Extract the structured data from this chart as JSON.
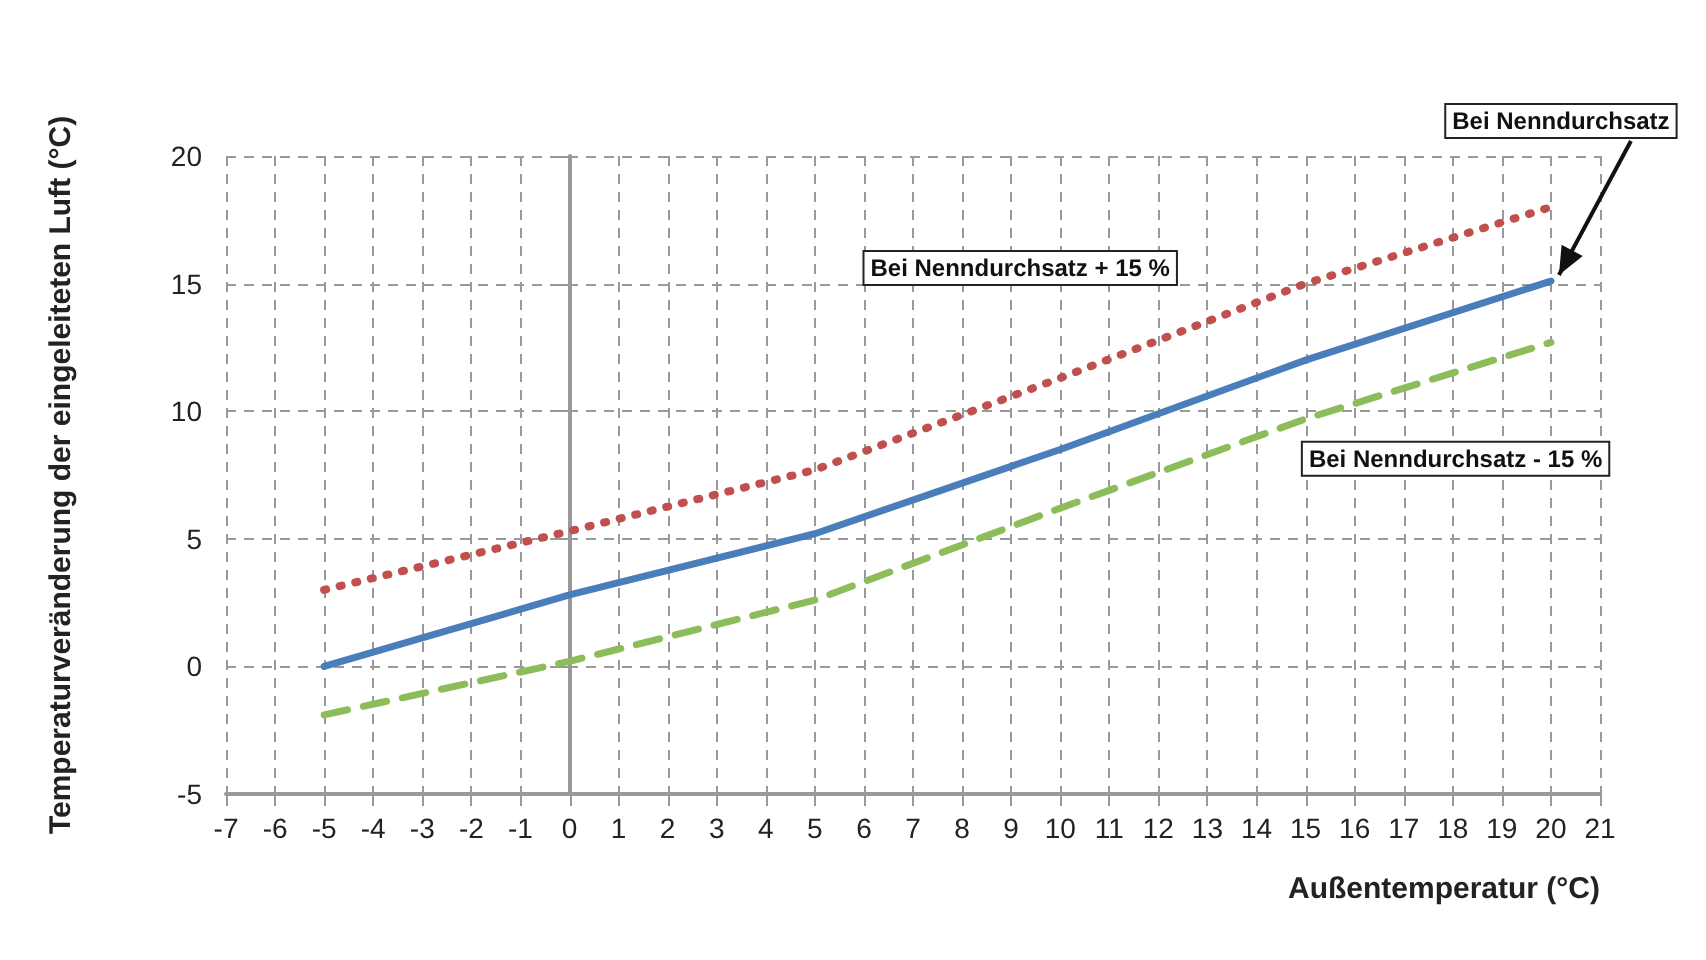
{
  "chart_data": {
    "type": "line",
    "xlabel": "Außentemperatur (°C)",
    "ylabel": "Temperaturveränderung der eingeleiteten Luft (°C)",
    "x": [
      -5,
      0,
      5,
      10,
      15,
      20
    ],
    "series": [
      {
        "name": "Bei Nenndurchsatz + 15 %",
        "color": "#c0504d",
        "line_style": "dotted",
        "values": [
          3.0,
          5.3,
          7.7,
          11.3,
          15.0,
          18.0
        ]
      },
      {
        "name": "Bei Nenndurchsatz",
        "color": "#4a7ebb",
        "line_style": "solid",
        "values": [
          0.0,
          2.8,
          5.2,
          8.5,
          12.0,
          15.1
        ]
      },
      {
        "name": "Bei Nenndurchsatz - 15 %",
        "color": "#8cbd5a",
        "line_style": "dashed",
        "values": [
          -1.9,
          0.2,
          2.6,
          6.2,
          9.7,
          12.7
        ]
      }
    ],
    "xlim": [
      -7,
      21
    ],
    "xticks": [
      -7,
      -6,
      -5,
      -4,
      -3,
      -2,
      -1,
      0,
      1,
      2,
      3,
      4,
      5,
      6,
      7,
      8,
      9,
      10,
      11,
      12,
      13,
      14,
      15,
      16,
      17,
      18,
      19,
      20,
      21
    ],
    "ylim": [
      -5,
      20
    ],
    "yticks": [
      -5,
      0,
      5,
      10,
      15,
      20
    ],
    "grid": true,
    "legend": false,
    "marker": "none"
  }
}
